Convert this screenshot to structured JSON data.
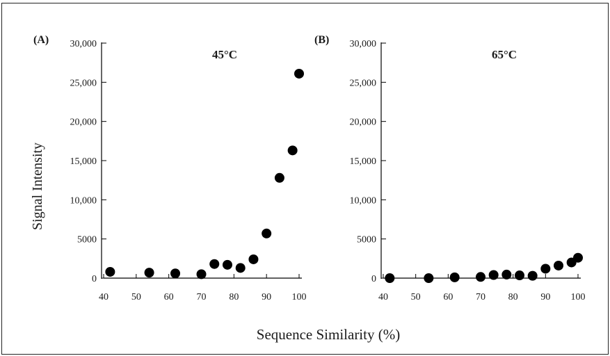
{
  "figure": {
    "ylabel": "Signal Intensity",
    "xlabel": "Sequence Similarity (%)"
  },
  "chart_data": [
    {
      "type": "scatter",
      "panel_label": "(A)",
      "annotation": "45°C",
      "xlim": [
        40,
        100
      ],
      "ylim": [
        0,
        30000
      ],
      "x_ticks": [
        40,
        50,
        60,
        70,
        80,
        90,
        100
      ],
      "x_tick_labels": [
        "40",
        "50",
        "60",
        "70",
        "80",
        "90",
        "100"
      ],
      "y_ticks": [
        0,
        5000,
        10000,
        15000,
        20000,
        25000,
        30000
      ],
      "y_tick_labels": [
        "0",
        "5000",
        "10,000",
        "15,000",
        "20,000",
        "25,000",
        "30,000"
      ],
      "x": [
        42,
        54,
        62,
        70,
        74,
        78,
        82,
        86,
        90,
        94,
        98,
        100
      ],
      "y": [
        800,
        700,
        600,
        500,
        1800,
        1700,
        1300,
        2400,
        5700,
        12800,
        16300,
        26100
      ],
      "marker_color": "#000000"
    },
    {
      "type": "scatter",
      "panel_label": "(B)",
      "annotation": "65°C",
      "xlim": [
        40,
        100
      ],
      "ylim": [
        0,
        30000
      ],
      "x_ticks": [
        40,
        50,
        60,
        70,
        80,
        90,
        100
      ],
      "x_tick_labels": [
        "40",
        "50",
        "60",
        "70",
        "80",
        "90",
        "100"
      ],
      "y_ticks": [
        0,
        5000,
        10000,
        15000,
        20000,
        25000,
        30000
      ],
      "y_tick_labels": [
        "0",
        "5000",
        "10,000",
        "15,000",
        "20,000",
        "25,000",
        "30,000"
      ],
      "x": [
        42,
        54,
        62,
        70,
        74,
        78,
        82,
        86,
        90,
        94,
        98,
        100
      ],
      "y": [
        0,
        0,
        100,
        150,
        400,
        450,
        350,
        300,
        1200,
        1600,
        2000,
        2600
      ],
      "marker_color": "#000000"
    }
  ]
}
